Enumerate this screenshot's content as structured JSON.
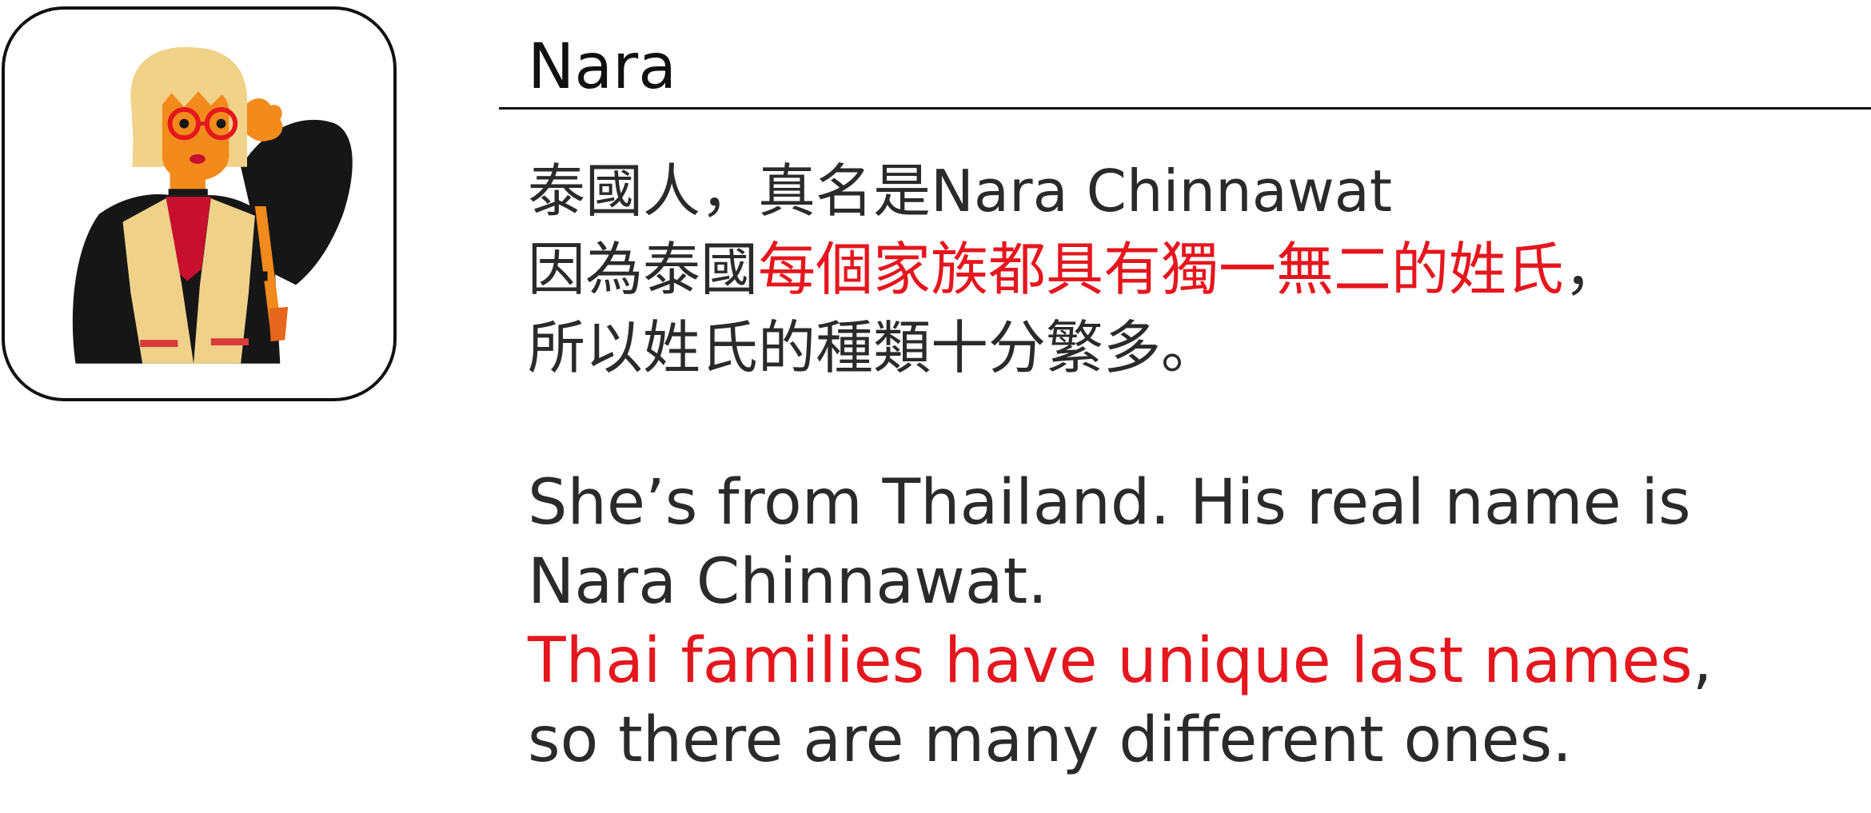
{
  "avatar": {
    "icon": "woman-with-glasses-avatar-icon"
  },
  "profile": {
    "name": "Nara"
  },
  "chinese": {
    "line1": "泰國人，真名是Nara Chinnawat",
    "line2_prefix": "因為泰國",
    "line2_highlight": "每個家族都具有獨一無二的姓氏",
    "line2_suffix": "，",
    "line3": "所以姓氏的種類十分繁多。"
  },
  "english": {
    "line1": "She’s from Thailand. His real name is",
    "line2": "Nara Chinnawat.",
    "line3_highlight": "Thai families have unique last names",
    "line3_suffix": ",",
    "line4": "so there are many different ones."
  },
  "colors": {
    "text": "#2a2a2a",
    "highlight": "#e5161d",
    "rule": "#111111"
  }
}
